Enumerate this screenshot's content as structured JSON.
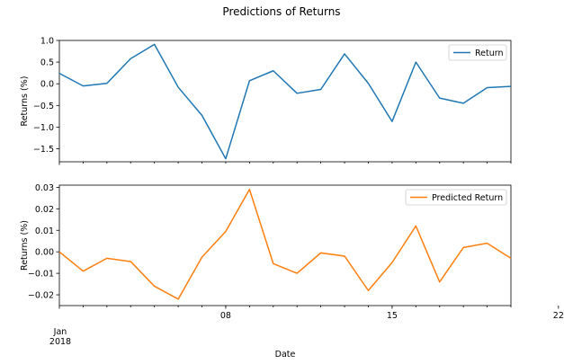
{
  "chart_data": {
    "type": "line",
    "title": "Predictions of Returns",
    "xlabel": "Date",
    "x": [
      "2018-01-01",
      "2018-01-02",
      "2018-01-03",
      "2018-01-04",
      "2018-01-05",
      "2018-01-06",
      "2018-01-07",
      "2018-01-08",
      "2018-01-09",
      "2018-01-10",
      "2018-01-11",
      "2018-01-12",
      "2018-01-13",
      "2018-01-14",
      "2018-01-15",
      "2018-01-16",
      "2018-01-17",
      "2018-01-18",
      "2018-01-19",
      "2018-01-20"
    ],
    "x_tick_labels": {
      "major": [
        "Jan",
        "2018"
      ],
      "minor": [
        "08",
        "15",
        "22"
      ]
    },
    "subplots": [
      {
        "ylabel": "Returns (%)",
        "ylim": [
          -1.8,
          1.0
        ],
        "yticks": [
          1.0,
          0.5,
          0.0,
          -0.5,
          -1.0,
          -1.5
        ],
        "ytick_labels": [
          "1.0",
          "0.5",
          "0.0",
          "−0.5",
          "−1.0",
          "−1.5"
        ],
        "legend_position": "top-right",
        "series": [
          {
            "name": "Return",
            "color": "#1f77b4",
            "values": [
              0.24,
              -0.05,
              0.01,
              0.58,
              0.91,
              -0.08,
              -0.73,
              -1.73,
              0.07,
              0.3,
              -0.22,
              -0.13,
              0.69,
              0.01,
              -0.87,
              0.5,
              -0.33,
              -0.45,
              -0.09,
              -0.06
            ]
          }
        ]
      },
      {
        "ylabel": "Returns (%)",
        "ylim": [
          -0.025,
          0.031
        ],
        "yticks": [
          0.03,
          0.02,
          0.01,
          0.0,
          -0.01,
          -0.02
        ],
        "ytick_labels": [
          "0.03",
          "0.02",
          "0.01",
          "0.00",
          "−0.01",
          "−0.02"
        ],
        "legend_position": "top-right",
        "series": [
          {
            "name": "Predicted Return",
            "color": "#ff7f0e",
            "values": [
              0.0,
              -0.009,
              -0.003,
              -0.0045,
              -0.016,
              -0.022,
              -0.0025,
              0.0095,
              0.029,
              -0.0055,
              -0.01,
              -0.0005,
              -0.002,
              -0.018,
              -0.005,
              0.012,
              -0.014,
              0.002,
              0.004,
              -0.003
            ]
          }
        ]
      }
    ]
  }
}
